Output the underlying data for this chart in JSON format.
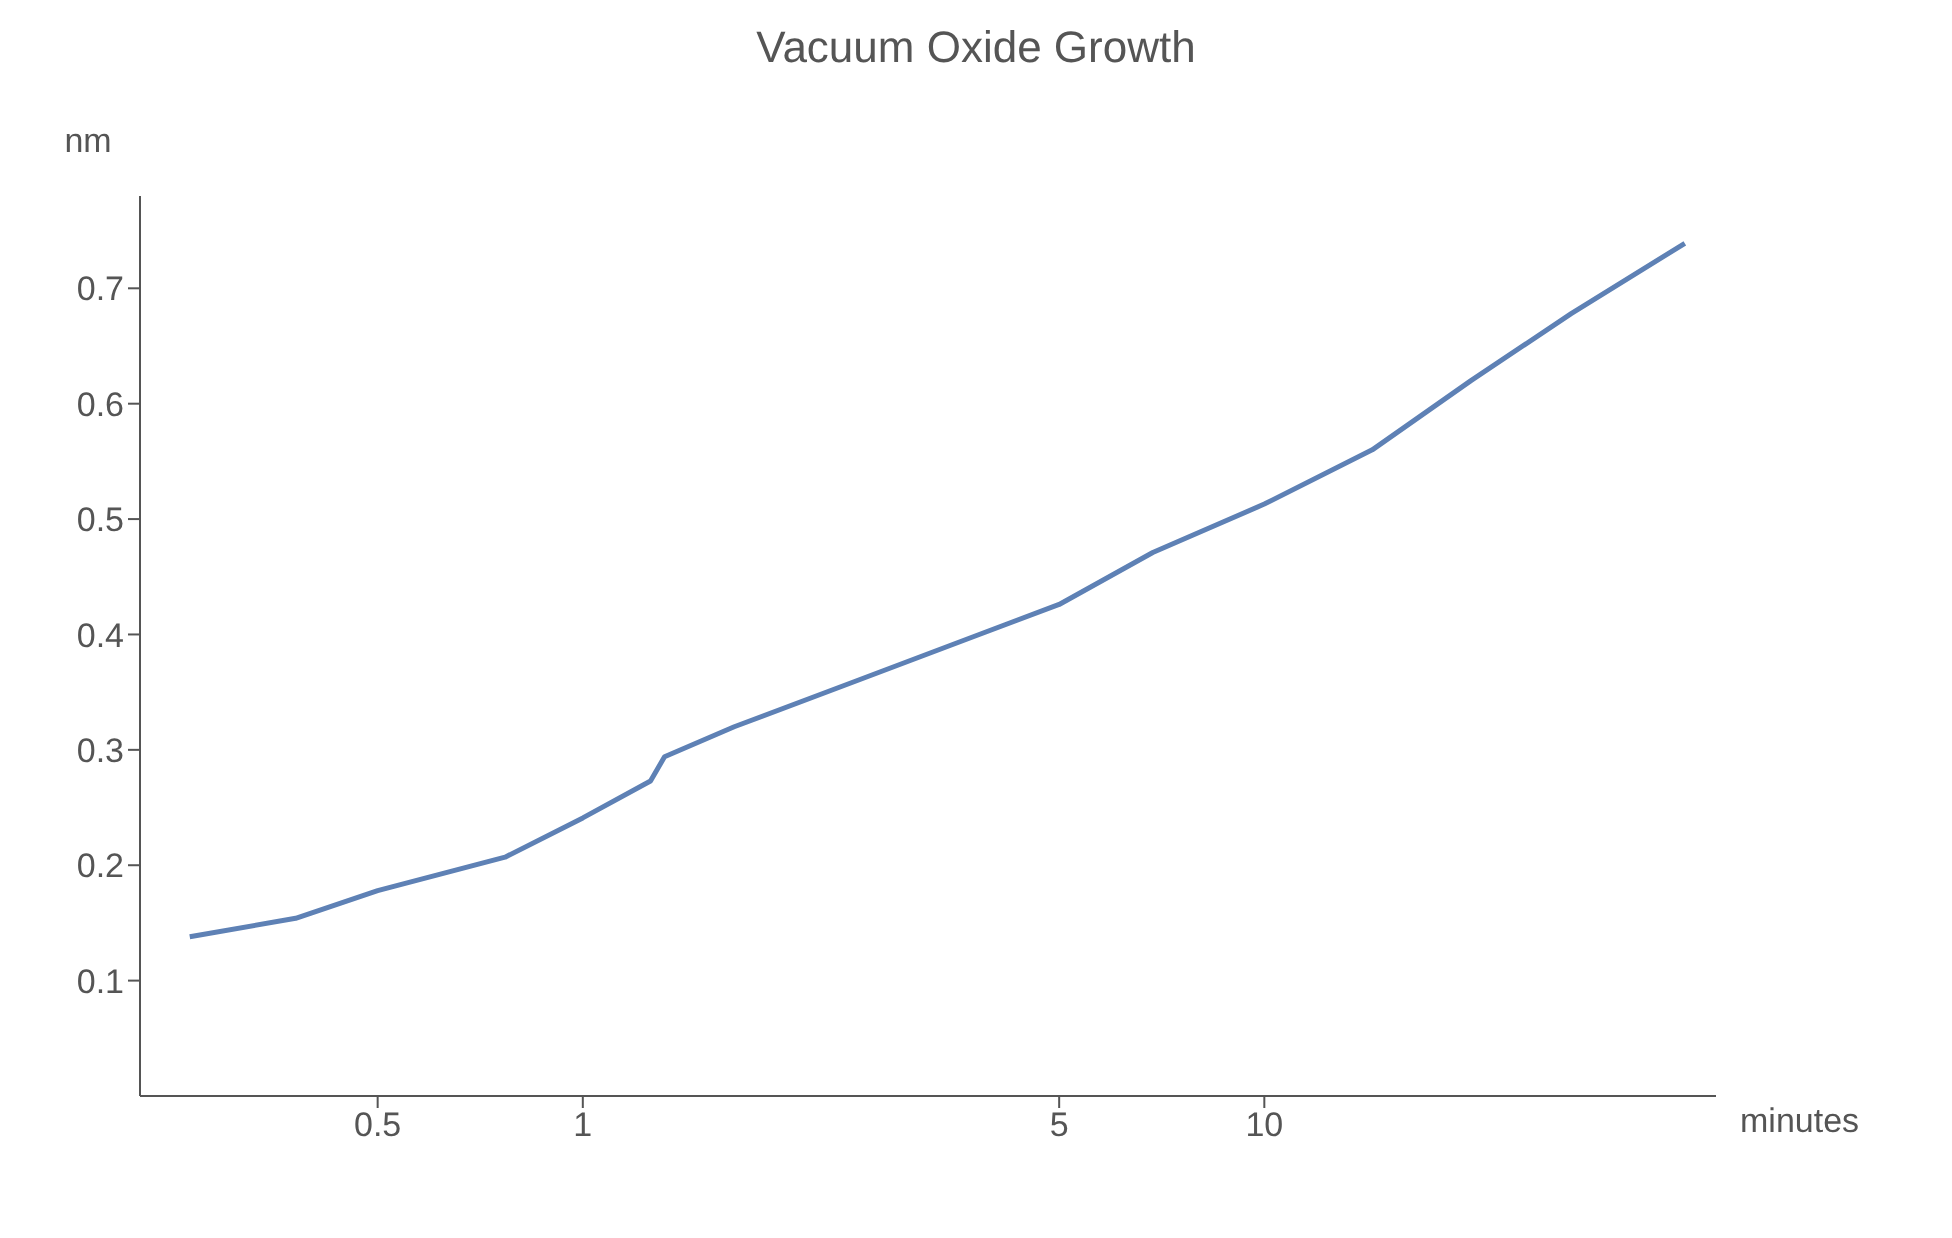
{
  "chart_data": {
    "type": "line",
    "title": "Vacuum Oxide Growth",
    "xlabel": "minutes",
    "ylabel": "nm",
    "log": "x",
    "x": [
      0.265,
      0.379,
      0.5,
      0.769,
      1,
      1.257,
      1.318,
      1.668,
      2.5,
      3.74,
      5,
      6.86,
      10,
      14.4,
      20.1,
      28.2,
      41.4
    ],
    "series": [
      {
        "color": "#5e81b5",
        "values": [
          0.138,
          0.154,
          0.178,
          0.207,
          0.241,
          0.273,
          0.294,
          0.32,
          0.359,
          0.398,
          0.426,
          0.471,
          0.513,
          0.56,
          0.62,
          0.678,
          0.739
        ]
      }
    ],
    "xlim": [
      0.224,
      46
    ],
    "xticks": [
      0.5,
      1,
      5,
      10
    ],
    "ylim": [
      0,
      0.78
    ],
    "yticks": [
      0.1,
      0.2,
      0.3,
      0.4,
      0.5,
      0.6,
      0.7
    ],
    "grid": false,
    "legend": false,
    "marker": "none",
    "line_style": "solid"
  }
}
